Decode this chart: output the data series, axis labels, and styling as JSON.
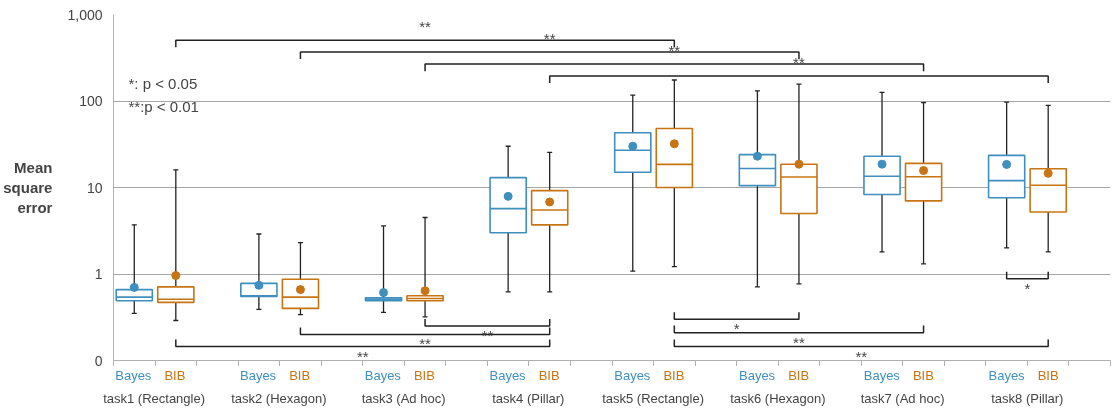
{
  "chart_data": {
    "type": "box",
    "ylabel": "Mean square error",
    "categories": [
      "task1 (Rectangle)",
      "task2 (Hexagon)",
      "task3 (Ad hoc)",
      "task4 (Pillar)",
      "task5 (Rectangle)",
      "task6 (Hexagon)",
      "task7 (Ad hoc)",
      "task8 (Pillar)"
    ],
    "series": [
      {
        "name": "Bayes",
        "color": "#3f8fbf",
        "boxes": [
          {
            "low": 0.35,
            "q1": 0.49,
            "median": 0.54,
            "q3": 0.66,
            "high": 3.7,
            "mean": 0.7
          },
          {
            "low": 0.39,
            "q1": 0.55,
            "median": 0.56,
            "q3": 0.78,
            "high": 2.9,
            "mean": 0.74
          },
          {
            "low": 0.36,
            "q1": 0.49,
            "median": 0.51,
            "q3": 0.53,
            "high": 3.6,
            "mean": 0.61
          },
          {
            "low": 0.62,
            "q1": 3.0,
            "median": 5.7,
            "q3": 13,
            "high": 30,
            "mean": 7.9
          },
          {
            "low": 1.08,
            "q1": 15,
            "median": 27,
            "q3": 43,
            "high": 117,
            "mean": 30
          },
          {
            "low": 0.71,
            "q1": 10.5,
            "median": 16.6,
            "q3": 24,
            "high": 131,
            "mean": 23
          },
          {
            "low": 1.8,
            "q1": 8.3,
            "median": 13.5,
            "q3": 23,
            "high": 126,
            "mean": 18.6
          },
          {
            "low": 2.0,
            "q1": 7.6,
            "median": 12,
            "q3": 23.5,
            "high": 97,
            "mean": 18.5
          }
        ]
      },
      {
        "name": "BIB",
        "color": "#c87413",
        "boxes": [
          {
            "low": 0.29,
            "q1": 0.47,
            "median": 0.51,
            "q3": 0.71,
            "high": 16,
            "mean": 0.96
          },
          {
            "low": 0.34,
            "q1": 0.4,
            "median": 0.54,
            "q3": 0.87,
            "high": 2.3,
            "mean": 0.66
          },
          {
            "low": 0.32,
            "q1": 0.49,
            "median": 0.52,
            "q3": 0.56,
            "high": 4.5,
            "mean": 0.64
          },
          {
            "low": 0.62,
            "q1": 3.7,
            "median": 5.5,
            "q3": 9.2,
            "high": 25.5,
            "mean": 6.8
          },
          {
            "low": 1.22,
            "q1": 10,
            "median": 18.5,
            "q3": 48,
            "high": 175,
            "mean": 32
          },
          {
            "low": 0.77,
            "q1": 5.0,
            "median": 13.2,
            "q3": 18.6,
            "high": 157,
            "mean": 18.6
          },
          {
            "low": 1.31,
            "q1": 7.0,
            "median": 13.3,
            "q3": 19,
            "high": 96,
            "mean": 15.7
          },
          {
            "low": 1.8,
            "q1": 5.2,
            "median": 10.6,
            "q3": 16.5,
            "high": 89,
            "mean": 14.6
          }
        ]
      }
    ],
    "log": "y",
    "ylim": [
      0.1,
      1000
    ],
    "yticks": [
      {
        "value": 0.1,
        "label": "0"
      },
      1,
      10,
      100,
      {
        "value": 1000,
        "label": "1,000"
      }
    ],
    "grid": "y",
    "marker": "circle",
    "annotations": [
      "*: p < 0.05",
      "**:p < 0.01",
      "**",
      "**",
      "**",
      "**",
      "**",
      "**",
      "**",
      "*",
      "**",
      "**",
      "*"
    ]
  }
}
